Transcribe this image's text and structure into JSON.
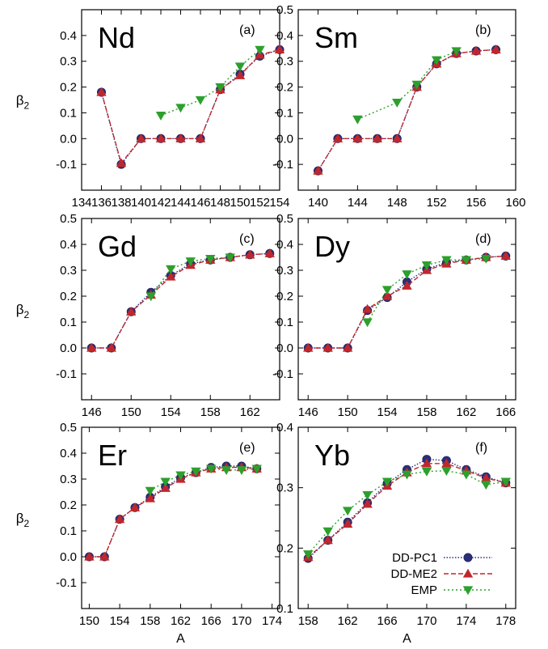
{
  "chart_data": [
    {
      "type": "line",
      "element": "Nd",
      "panel_label": "(a)",
      "ylabel": "β2",
      "xlabel": "",
      "xlim": [
        134,
        154
      ],
      "xticks": [
        134,
        136,
        138,
        140,
        142,
        144,
        146,
        148,
        150,
        152,
        154
      ],
      "ylim": [
        -0.2,
        0.5
      ],
      "yticks": [
        -0.1,
        0.0,
        0.1,
        0.2,
        0.3,
        0.4
      ],
      "series": [
        {
          "name": "DD-PC1",
          "x": [
            136,
            138,
            140,
            142,
            144,
            146,
            148,
            150,
            152,
            154
          ],
          "y": [
            0.18,
            -0.1,
            0.0,
            0.0,
            0.0,
            0.0,
            0.19,
            0.25,
            0.32,
            0.345
          ]
        },
        {
          "name": "DD-ME2",
          "x": [
            136,
            138,
            140,
            142,
            144,
            146,
            148,
            150,
            152,
            154
          ],
          "y": [
            0.18,
            -0.095,
            0.0,
            0.0,
            0.0,
            0.0,
            0.19,
            0.245,
            0.325,
            0.345
          ]
        },
        {
          "name": "EMP",
          "x": [
            142,
            144,
            146,
            148,
            150,
            152
          ],
          "y": [
            0.09,
            0.12,
            0.15,
            0.2,
            0.28,
            0.345
          ]
        }
      ]
    },
    {
      "type": "line",
      "element": "Sm",
      "panel_label": "(b)",
      "ylabel": "",
      "xlabel": "",
      "xlim": [
        138,
        160
      ],
      "xticks": [
        140,
        144,
        148,
        152,
        156,
        160
      ],
      "ylim": [
        -0.2,
        0.5
      ],
      "yticks": [
        -0.1,
        0.0,
        0.1,
        0.2,
        0.3,
        0.4,
        0.5
      ],
      "series": [
        {
          "name": "DD-PC1",
          "x": [
            140,
            142,
            144,
            146,
            148,
            150,
            152,
            154,
            156,
            158
          ],
          "y": [
            -0.125,
            0.0,
            0.0,
            0.0,
            0.0,
            0.2,
            0.29,
            0.33,
            0.34,
            0.345
          ]
        },
        {
          "name": "DD-ME2",
          "x": [
            140,
            142,
            144,
            146,
            148,
            150,
            152,
            154,
            156,
            158
          ],
          "y": [
            -0.125,
            0.0,
            0.0,
            0.0,
            0.0,
            0.2,
            0.29,
            0.33,
            0.34,
            0.345
          ]
        },
        {
          "name": "EMP",
          "x": [
            144,
            148,
            150,
            152,
            154
          ],
          "y": [
            0.075,
            0.14,
            0.21,
            0.305,
            0.34
          ]
        }
      ]
    },
    {
      "type": "line",
      "element": "Gd",
      "panel_label": "(c)",
      "ylabel": "β2",
      "xlabel": "",
      "xlim": [
        145,
        165
      ],
      "xticks": [
        146,
        150,
        154,
        158,
        162
      ],
      "ylim": [
        -0.2,
        0.5
      ],
      "yticks": [
        -0.1,
        0.0,
        0.1,
        0.2,
        0.3,
        0.4,
        0.5
      ],
      "series": [
        {
          "name": "DD-PC1",
          "x": [
            146,
            148,
            150,
            152,
            154,
            156,
            158,
            160,
            162,
            164
          ],
          "y": [
            0.0,
            0.0,
            0.14,
            0.215,
            0.28,
            0.325,
            0.34,
            0.35,
            0.36,
            0.365
          ]
        },
        {
          "name": "DD-ME2",
          "x": [
            146,
            148,
            150,
            152,
            154,
            156,
            158,
            160,
            162,
            164
          ],
          "y": [
            0.0,
            0.0,
            0.14,
            0.205,
            0.275,
            0.32,
            0.34,
            0.35,
            0.36,
            0.365
          ]
        },
        {
          "name": "EMP",
          "x": [
            152,
            154,
            156,
            158,
            160
          ],
          "y": [
            0.2,
            0.305,
            0.335,
            0.345,
            0.35
          ]
        }
      ]
    },
    {
      "type": "line",
      "element": "Dy",
      "panel_label": "(d)",
      "ylabel": "",
      "xlabel": "",
      "xlim": [
        145,
        167
      ],
      "xticks": [
        146,
        150,
        154,
        158,
        162,
        166
      ],
      "ylim": [
        -0.2,
        0.5
      ],
      "yticks": [
        -0.1,
        0.0,
        0.1,
        0.2,
        0.3,
        0.4,
        0.5
      ],
      "series": [
        {
          "name": "DD-PC1",
          "x": [
            146,
            148,
            150,
            152,
            154,
            156,
            158,
            160,
            162,
            164,
            166
          ],
          "y": [
            0.0,
            0.0,
            0.0,
            0.145,
            0.195,
            0.255,
            0.305,
            0.33,
            0.34,
            0.35,
            0.355
          ]
        },
        {
          "name": "DD-ME2",
          "x": [
            146,
            148,
            150,
            152,
            154,
            156,
            158,
            160,
            162,
            164,
            166
          ],
          "y": [
            0.0,
            0.0,
            0.0,
            0.15,
            0.2,
            0.24,
            0.3,
            0.325,
            0.34,
            0.35,
            0.355
          ]
        },
        {
          "name": "EMP",
          "x": [
            152,
            154,
            156,
            158,
            160,
            162,
            164
          ],
          "y": [
            0.1,
            0.225,
            0.285,
            0.32,
            0.34,
            0.34,
            0.345
          ]
        }
      ]
    },
    {
      "type": "line",
      "element": "Er",
      "panel_label": "(e)",
      "ylabel": "β2",
      "xlabel": "A",
      "xlim": [
        149,
        175
      ],
      "xticks": [
        150,
        154,
        158,
        162,
        166,
        170,
        174
      ],
      "ylim": [
        -0.2,
        0.5
      ],
      "yticks": [
        -0.1,
        0.0,
        0.1,
        0.2,
        0.3,
        0.4,
        0.5
      ],
      "series": [
        {
          "name": "DD-PC1",
          "x": [
            150,
            152,
            154,
            156,
            158,
            160,
            162,
            164,
            166,
            168,
            170,
            172
          ],
          "y": [
            0.0,
            0.0,
            0.145,
            0.19,
            0.23,
            0.27,
            0.305,
            0.325,
            0.345,
            0.35,
            0.35,
            0.34
          ]
        },
        {
          "name": "DD-ME2",
          "x": [
            150,
            152,
            154,
            156,
            158,
            160,
            162,
            164,
            166,
            168,
            170,
            172
          ],
          "y": [
            0.0,
            0.0,
            0.145,
            0.19,
            0.225,
            0.265,
            0.3,
            0.325,
            0.34,
            0.345,
            0.345,
            0.34
          ]
        },
        {
          "name": "EMP",
          "x": [
            158,
            160,
            162,
            164,
            166,
            168,
            170,
            172
          ],
          "y": [
            0.255,
            0.29,
            0.315,
            0.33,
            0.34,
            0.335,
            0.335,
            0.34
          ]
        }
      ]
    },
    {
      "type": "line",
      "element": "Yb",
      "panel_label": "(f)",
      "ylabel": "",
      "xlabel": "A",
      "xlim": [
        157,
        179
      ],
      "xticks": [
        158,
        162,
        166,
        170,
        174,
        178
      ],
      "ylim": [
        0.1,
        0.4
      ],
      "yticks": [
        0.1,
        0.2,
        0.3,
        0.4
      ],
      "series": [
        {
          "name": "DD-PC1",
          "x": [
            158,
            160,
            162,
            164,
            166,
            168,
            170,
            172,
            174,
            176,
            178
          ],
          "y": [
            0.183,
            0.213,
            0.243,
            0.275,
            0.307,
            0.33,
            0.347,
            0.345,
            0.33,
            0.318,
            0.308
          ]
        },
        {
          "name": "DD-ME2",
          "x": [
            158,
            160,
            162,
            164,
            166,
            168,
            170,
            172,
            174,
            176,
            178
          ],
          "y": [
            0.185,
            0.213,
            0.24,
            0.273,
            0.303,
            0.325,
            0.34,
            0.34,
            0.328,
            0.316,
            0.308
          ]
        },
        {
          "name": "EMP",
          "x": [
            158,
            160,
            162,
            164,
            166,
            168,
            170,
            172,
            174,
            176,
            178
          ],
          "y": [
            0.19,
            0.228,
            0.262,
            0.288,
            0.31,
            0.322,
            0.327,
            0.328,
            0.322,
            0.305,
            0.31
          ]
        }
      ]
    }
  ],
  "legend": {
    "placement": "bottom-right of panel (f)",
    "entries": [
      "DD-PC1",
      "DD-ME2",
      "EMP"
    ]
  },
  "colors": {
    "DD-PC1": "#2b2f7a",
    "DD-ME2": "#c0272d",
    "EMP": "#2ca02c"
  },
  "markers": {
    "DD-PC1": "circle",
    "DD-ME2": "triangle-up",
    "EMP": "triangle-down"
  }
}
